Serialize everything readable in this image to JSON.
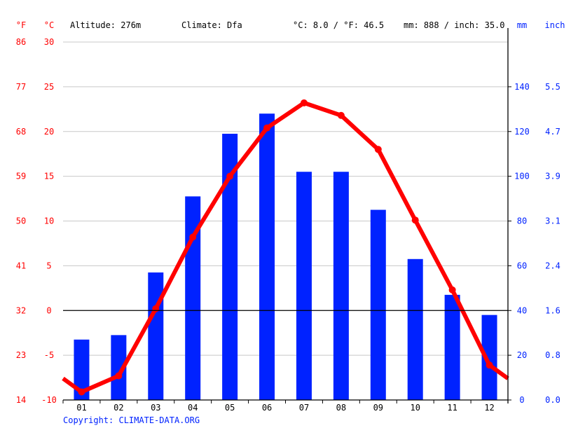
{
  "header": {
    "f_unit": "°F",
    "c_unit": "°C",
    "altitude": "Altitude: 276m",
    "climate": "Climate: Dfa",
    "avg_temp": "°C: 8.0 / °F: 46.5",
    "precip_total": "mm: 888 / inch: 35.0",
    "mm_unit": "mm",
    "inch_unit": "inch"
  },
  "copyright": "Copyright: CLIMATE-DATA.ORG",
  "colors": {
    "temperature": "#ff0000",
    "precipitation": "#0022ff",
    "axis_label_right": "#0022ff",
    "axis_label_left": "#ff0000",
    "grid": "#c8c8c8"
  },
  "chart_data": {
    "type": "bar+line",
    "categories": [
      "01",
      "02",
      "03",
      "04",
      "05",
      "06",
      "07",
      "08",
      "09",
      "10",
      "11",
      "12"
    ],
    "series": [
      {
        "type": "line",
        "axis": "left",
        "unit": "°C",
        "values": [
          -9.1,
          -7.3,
          0.2,
          8.2,
          15.0,
          20.4,
          23.2,
          21.8,
          18.0,
          10.1,
          2.3,
          -6.1
        ]
      },
      {
        "type": "bar",
        "axis": "right",
        "unit": "mm",
        "values": [
          27,
          29,
          57,
          91,
          119,
          128,
          102,
          102,
          85,
          63,
          47,
          38
        ]
      }
    ],
    "y_left": {
      "range": [
        -10,
        30
      ],
      "ticks_c": [
        "-10",
        "-5",
        "0",
        "5",
        "10",
        "15",
        "20",
        "25",
        "30"
      ],
      "ticks_f": [
        "14",
        "23",
        "32",
        "41",
        "50",
        "59",
        "68",
        "77",
        "86"
      ]
    },
    "y_right": {
      "range": [
        0,
        160
      ],
      "ticks_mm": [
        "0",
        "20",
        "40",
        "60",
        "80",
        "100",
        "120",
        "140"
      ],
      "ticks_inch": [
        "0.0",
        "0.8",
        "1.6",
        "2.4",
        "3.1",
        "3.9",
        "4.7",
        "5.5"
      ]
    },
    "grid": true
  }
}
